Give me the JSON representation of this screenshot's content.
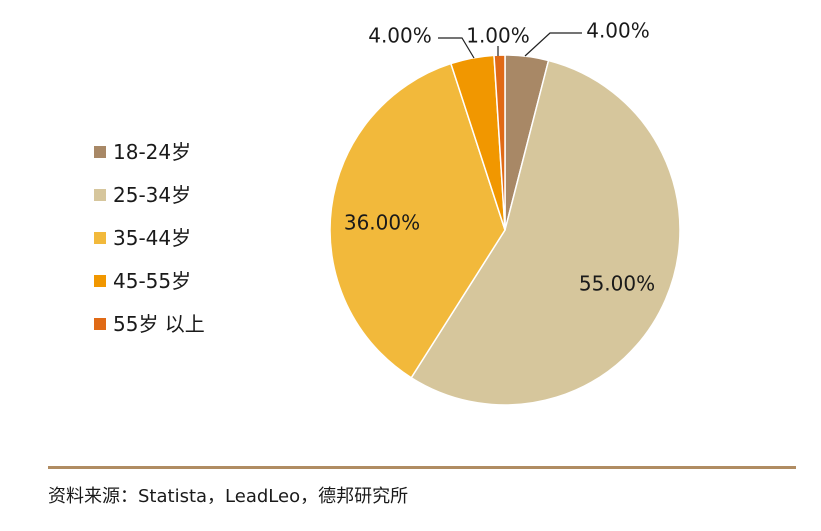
{
  "chart_data": {
    "type": "pie",
    "start_angle_deg": 0,
    "direction": "clockwise",
    "slices": [
      {
        "label": "18-24岁",
        "value": 4.0,
        "value_label": "4.00%",
        "color": "#a88866"
      },
      {
        "label": "25-34岁",
        "value": 55.0,
        "value_label": "55.00%",
        "color": "#d6c69c"
      },
      {
        "label": "35-44岁",
        "value": 36.0,
        "value_label": "36.00%",
        "color": "#f2b93b"
      },
      {
        "label": "45-55岁",
        "value": 4.0,
        "value_label": "4.00%",
        "color": "#f19700"
      },
      {
        "label": "55岁 以上",
        "value": 1.0,
        "value_label": "1.00%",
        "color": "#e06a16"
      }
    ],
    "legend_position": "left"
  },
  "footer": {
    "source": "资料来源：Statista，LeadLeo，德邦研究所",
    "divider_color": "#b08c62"
  }
}
